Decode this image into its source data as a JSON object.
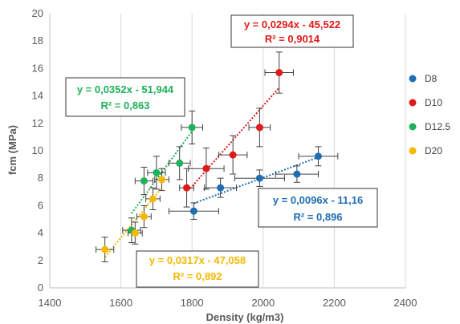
{
  "chart_data": {
    "type": "scatter",
    "title": "",
    "xlabel": "Density (kg/m3)",
    "ylabel": "fcm (MPa)",
    "xlim": [
      1400,
      2400
    ],
    "ylim": [
      0,
      20
    ],
    "x_ticks": [
      1400,
      1600,
      1800,
      2000,
      2200,
      2400
    ],
    "y_ticks": [
      0,
      2,
      4,
      6,
      8,
      10,
      12,
      14,
      16,
      18,
      20
    ],
    "x_tick_labels": [
      "1400",
      "1600",
      "1800",
      "2000",
      "2200",
      "2400"
    ],
    "y_tick_labels": [
      "0",
      "2",
      "4",
      "6",
      "8",
      "10",
      "12",
      "14",
      "16",
      "18",
      "20"
    ],
    "grid": "vertical",
    "legend_position": "right",
    "series": [
      {
        "name": "D8",
        "color": "#1f6eb3",
        "points": [
          {
            "x": 1805,
            "y": 5.6,
            "xerr": 70,
            "yerr": 0.6
          },
          {
            "x": 1880,
            "y": 7.3,
            "xerr": 45,
            "yerr": 0.7
          },
          {
            "x": 1990,
            "y": 8.0,
            "xerr": 70,
            "yerr": 0.6
          },
          {
            "x": 2095,
            "y": 8.3,
            "xerr": 60,
            "yerr": 0.6
          },
          {
            "x": 2155,
            "y": 9.6,
            "xerr": 55,
            "yerr": 0.7
          }
        ],
        "trendline": {
          "slope": 0.0096,
          "intercept": -11.16,
          "x_range": [
            1805,
            2155
          ]
        },
        "equation": "y = 0,0096x - 11,16",
        "r2": "R² = 0,896"
      },
      {
        "name": "D10",
        "color": "#e01a1a",
        "points": [
          {
            "x": 1785,
            "y": 7.3,
            "xerr": 20,
            "yerr": 1.4
          },
          {
            "x": 1840,
            "y": 8.7,
            "xerr": 50,
            "yerr": 1.5
          },
          {
            "x": 1915,
            "y": 9.7,
            "xerr": 40,
            "yerr": 1.4
          },
          {
            "x": 1990,
            "y": 11.7,
            "xerr": 30,
            "yerr": 1.4
          },
          {
            "x": 2045,
            "y": 15.7,
            "xerr": 40,
            "yerr": 1.5
          }
        ],
        "trendline": {
          "slope": 0.0294,
          "intercept": -45.522,
          "x_range": [
            1795,
            2045
          ]
        },
        "equation": "y = 0,0294x - 45,522",
        "r2": "R² = 0,9014"
      },
      {
        "name": "D12.5",
        "color": "#1fb05a",
        "points": [
          {
            "x": 1630,
            "y": 4.2,
            "xerr": 25,
            "yerr": 0.9
          },
          {
            "x": 1665,
            "y": 7.8,
            "xerr": 25,
            "yerr": 1.0
          },
          {
            "x": 1700,
            "y": 8.4,
            "xerr": 25,
            "yerr": 1.2
          },
          {
            "x": 1765,
            "y": 9.1,
            "xerr": 30,
            "yerr": 1.2
          },
          {
            "x": 1800,
            "y": 11.7,
            "xerr": 30,
            "yerr": 1.2
          }
        ],
        "trendline": {
          "slope": 0.0352,
          "intercept": -51.944,
          "x_range": [
            1630,
            1800
          ]
        },
        "equation": "y = 0,0352x - 51,944",
        "r2": "R² = 0,863"
      },
      {
        "name": "D20",
        "color": "#f5b800",
        "points": [
          {
            "x": 1555,
            "y": 2.8,
            "xerr": 25,
            "yerr": 0.9
          },
          {
            "x": 1640,
            "y": 4.0,
            "xerr": 20,
            "yerr": 0.8
          },
          {
            "x": 1665,
            "y": 5.2,
            "xerr": 20,
            "yerr": 0.8
          },
          {
            "x": 1690,
            "y": 6.5,
            "xerr": 20,
            "yerr": 0.8
          },
          {
            "x": 1715,
            "y": 7.9,
            "xerr": 20,
            "yerr": 0.8
          }
        ],
        "trendline": {
          "slope": 0.0317,
          "intercept": -47.058,
          "x_range": [
            1555,
            1715
          ]
        },
        "equation": "y = 0,0317x - 47,058",
        "r2": "R² = 0,892"
      }
    ]
  }
}
